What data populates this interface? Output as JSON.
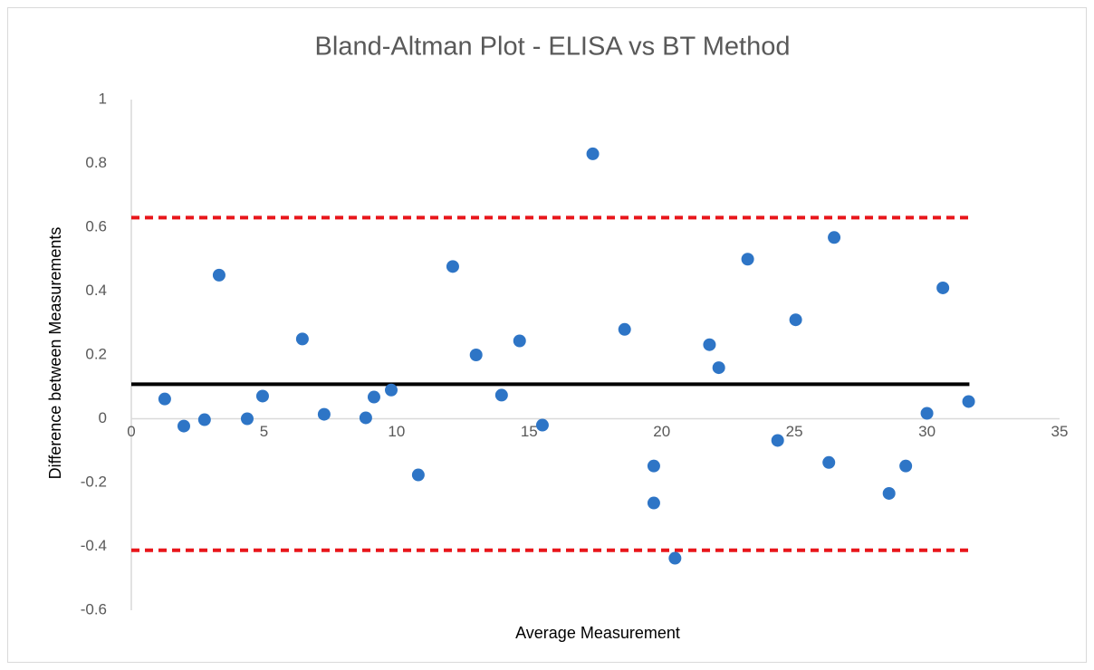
{
  "chart_data": {
    "type": "scatter",
    "title": "Bland-Altman Plot - ELISA vs BT Method",
    "x_label": "Average Measurement",
    "y_label": "Difference between Measurements",
    "xlim": [
      0,
      35
    ],
    "xticks": [
      0,
      5,
      10,
      15,
      20,
      25,
      30,
      35
    ],
    "ylim": [
      -0.6,
      1
    ],
    "yticks": [
      -0.6,
      -0.4,
      -0.2,
      0,
      0.2,
      0.4,
      0.6,
      0.8,
      1
    ],
    "color": "#2e75c6",
    "x": [
      1.26,
      1.98,
      2.76,
      3.31,
      4.37,
      4.95,
      6.45,
      7.27,
      8.84,
      9.15,
      9.8,
      10.82,
      12.12,
      13.0,
      13.96,
      14.64,
      15.5,
      17.4,
      18.6,
      19.7,
      19.7,
      20.5,
      21.8,
      22.15,
      23.24,
      24.37,
      25.05,
      26.3,
      26.5,
      28.57,
      29.2,
      30.0,
      30.6,
      31.57
    ],
    "values": [
      0.062,
      -0.023,
      -0.003,
      0.45,
      0.0,
      0.071,
      0.25,
      0.014,
      0.003,
      0.068,
      0.09,
      -0.176,
      0.477,
      0.2,
      0.074,
      0.244,
      -0.02,
      0.83,
      0.28,
      -0.148,
      -0.264,
      -0.437,
      0.232,
      0.16,
      0.5,
      -0.068,
      0.31,
      -0.137,
      0.568,
      -0.234,
      -0.148,
      0.017,
      0.41,
      0.054
    ],
    "lines": [
      {
        "color": "#000000",
        "dashed": false,
        "x": [
          0,
          31.6
        ],
        "values": [
          0.108,
          0.108
        ]
      },
      {
        "color": "#e8161b",
        "dashed": true,
        "x": [
          0,
          31.6
        ],
        "values": [
          0.63,
          0.63
        ]
      },
      {
        "color": "#e8161b",
        "dashed": true,
        "x": [
          0,
          31.6
        ],
        "values": [
          -0.412,
          -0.412
        ]
      }
    ]
  }
}
